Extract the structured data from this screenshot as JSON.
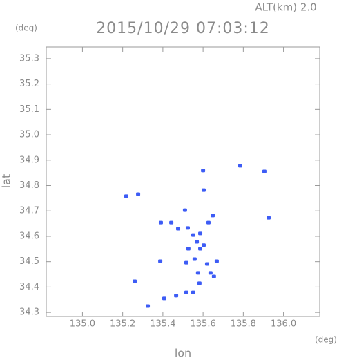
{
  "chart_data": {
    "type": "scatter",
    "title": "2015/10/29 07:03:12",
    "subtitle": "ALT(km) 2.0",
    "xlabel": "lon",
    "ylabel": "lat",
    "x_unit": "(deg)",
    "y_unit": "(deg)",
    "color": "#3d5cf5",
    "xlim": [
      134.82,
      136.18
    ],
    "ylim": [
      34.284,
      35.346
    ],
    "xticks": [
      {
        "value": 135,
        "label": "135.0"
      },
      135.2,
      135.4,
      135.6,
      135.8,
      {
        "value": 136,
        "label": "136.0"
      }
    ],
    "yticks": [
      34.3,
      34.4,
      34.5,
      34.6,
      34.7,
      34.8,
      34.9,
      {
        "value": 35,
        "label": "35.0"
      },
      35.1,
      35.2,
      35.3
    ],
    "x": [
      135.218,
      135.277,
      135.26,
      135.325,
      135.39,
      135.387,
      135.407,
      135.466,
      135.517,
      135.551,
      135.527,
      135.517,
      135.558,
      135.586,
      135.551,
      135.569,
      135.603,
      135.524,
      135.586,
      135.62,
      135.582,
      135.654,
      135.668,
      135.627,
      135.648,
      135.603,
      135.6,
      135.785,
      135.905,
      135.926,
      135.51,
      135.476,
      135.442,
      135.575,
      135.637
    ],
    "y": [
      34.758,
      34.766,
      34.423,
      34.325,
      34.654,
      34.502,
      34.355,
      34.366,
      34.379,
      34.379,
      34.551,
      34.496,
      34.51,
      34.551,
      34.605,
      34.578,
      34.565,
      34.633,
      34.611,
      34.491,
      34.415,
      34.442,
      34.502,
      34.654,
      34.682,
      34.782,
      34.859,
      34.878,
      34.856,
      34.673,
      34.703,
      34.63,
      34.654,
      34.456,
      34.456
    ]
  }
}
